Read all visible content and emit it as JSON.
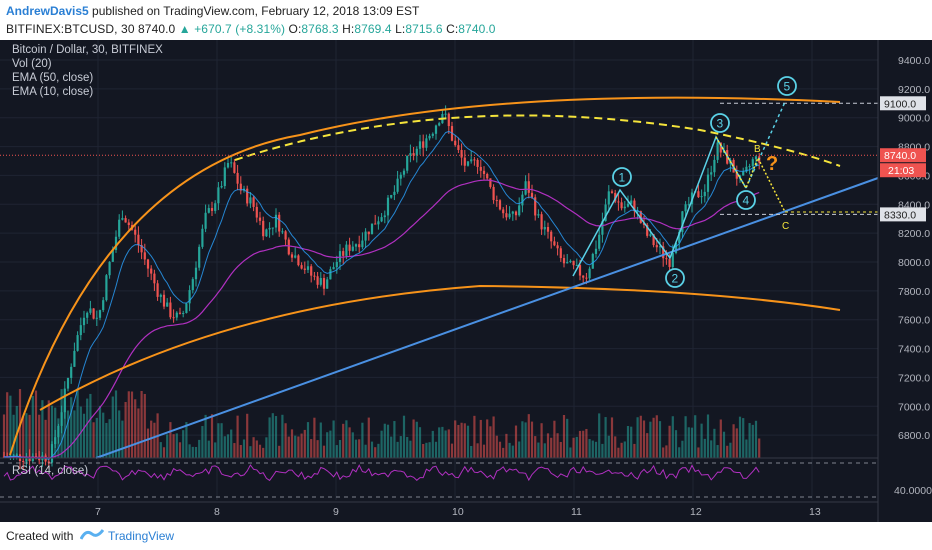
{
  "header": {
    "author": "AndrewDavis5",
    "published_text": " published on TradingView.com, February 12, 2018 13:09 EST",
    "symbol": "BITFINEX:BTCUSD, 30",
    "last": "8740.0",
    "change": "▲ +670.7 (+8.31%)",
    "o_label": "O:",
    "o_value": "8768.3",
    "h_label": "H:",
    "h_value": "8769.4",
    "l_label": "L:",
    "l_value": "8715.6",
    "c_label": "C:",
    "c_value": "8740.0"
  },
  "legend": {
    "title": "Bitcoin / Dollar, 30, BITFINEX",
    "vol": "Vol (20)",
    "ema50": "EMA (50, close)",
    "ema10": "EMA (10, close)",
    "rsi": "RSI (14, close)"
  },
  "footer": {
    "created_with": "Created with",
    "brand": "TradingView"
  },
  "colors": {
    "background": "#131722",
    "bull": "#26a69a",
    "bear": "#ef5350",
    "arc": "#f7931a",
    "dashed_arc": "#f5e43b",
    "trendline": "#4a90e2",
    "wave": "#5ad1e6",
    "ema50": "#b030c0",
    "ema10": "#2aa3ff",
    "rsi": "#b030c0",
    "price_label": "#ef5350"
  },
  "chart_data": {
    "type": "candlestick",
    "x_ticks": [
      "7",
      "8",
      "9",
      "10",
      "11",
      "12",
      "13"
    ],
    "y_ticks": [
      "9400.0",
      "9200.0",
      "9000.0",
      "8800.0",
      "8600.0",
      "8400.0",
      "8200.0",
      "8000.0",
      "7800.0",
      "7600.0",
      "7400.0",
      "7200.0",
      "7000.0",
      "6800.0"
    ],
    "ylim": [
      6600,
      9600
    ],
    "price_labels": [
      {
        "value": 9100,
        "text": "9100.0",
        "kind": "level"
      },
      {
        "value": 8740,
        "text": "8740.0",
        "kind": "last"
      },
      {
        "value": 8330,
        "text": "8330.0",
        "kind": "level"
      }
    ],
    "countdown": "21:03",
    "rsi_ticks": [
      "40.0000"
    ],
    "wave_labels": [
      "1",
      "2",
      "3",
      "4",
      "5"
    ],
    "abc_labels": [
      "B",
      "C"
    ],
    "question_mark": "?",
    "price_path_days": [
      6.6,
      6.7,
      6.8,
      6.9,
      7.0,
      7.1,
      7.2,
      7.3,
      7.4,
      7.5,
      7.6,
      7.7,
      7.8,
      7.9,
      8.0,
      8.1,
      8.2,
      8.3,
      8.4,
      8.5,
      8.6,
      8.7,
      8.8,
      8.9,
      9.0,
      9.1,
      9.2,
      9.3,
      9.4,
      9.5,
      9.6,
      9.7,
      9.8,
      9.9,
      10.0,
      10.1,
      10.2,
      10.3,
      10.4,
      10.5,
      10.6,
      10.7,
      10.8,
      10.9,
      11.0,
      11.1,
      11.2,
      11.3,
      11.4,
      11.5,
      11.6,
      11.7,
      11.8,
      11.9,
      12.0,
      12.1,
      12.2,
      12.3,
      12.4,
      12.5,
      12.6
    ],
    "price_path_values": [
      6650,
      7000,
      7400,
      7700,
      7600,
      8000,
      8350,
      8200,
      8000,
      7800,
      7650,
      7600,
      7900,
      8300,
      8450,
      8700,
      8500,
      8400,
      8200,
      8300,
      8100,
      8000,
      7900,
      7850,
      8000,
      8100,
      8150,
      8250,
      8350,
      8500,
      8700,
      8800,
      8900,
      9050,
      8800,
      8650,
      8700,
      8500,
      8350,
      8300,
      8550,
      8300,
      8150,
      8000,
      7950,
      7900,
      8150,
      8500,
      8380,
      8400,
      8200,
      8100,
      8000,
      8300,
      8450,
      8500,
      8800,
      8700,
      8550,
      8700,
      8740
    ]
  }
}
